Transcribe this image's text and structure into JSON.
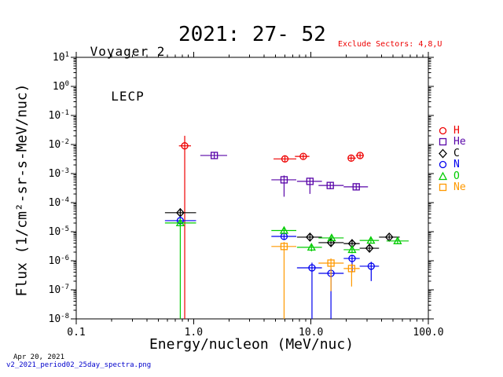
{
  "header": {
    "instrument_line1": "Voyager 2",
    "instrument_line2": "LECP",
    "period_title": "2021: 27- 52",
    "exclude_note": "Exclude Sectors: 4,8,U",
    "exclude_color": "#ee0000"
  },
  "footer": {
    "date": "Apr 20, 2021",
    "filename": "v2_2021_period02_25day_spectra.png",
    "link_color": "#0000cc"
  },
  "chart_data": {
    "type": "scatter",
    "title": "2021: 27- 52",
    "xlabel": "Energy/nucleon (MeV/nuc)",
    "ylabel": "Flux (1/cm²-sr-s-MeV/nuc)",
    "xscale": "log",
    "yscale": "log",
    "xlim": [
      0.1,
      100.0
    ],
    "ylim": [
      1e-08,
      10
    ],
    "x_tick_values": [
      0.1,
      1.0,
      10.0,
      100.0
    ],
    "x_tick_labels": [
      "0.1",
      "1.0",
      "10.0",
      "100.0"
    ],
    "y_tick_exponents": [
      1,
      0,
      -1,
      -2,
      -3,
      -4,
      -5,
      -6,
      -7,
      -8
    ],
    "grid": false,
    "legend_position": "right-outside",
    "point_format": [
      "x",
      "y",
      "x_low",
      "x_high",
      "y_low",
      "y_high"
    ],
    "note_error_bars": "y_low of 1e-9 means lower error bar extends down to the x-axis",
    "series": [
      {
        "name": "H",
        "color": "#ee0000",
        "marker": "circle",
        "points": [
          [
            0.84,
            0.009,
            0.75,
            0.95,
            1e-09,
            0.02
          ],
          [
            6.0,
            0.0032,
            4.8,
            7.5,
            0.0026,
            0.004
          ],
          [
            8.6,
            0.0039,
            7.3,
            9.7,
            0.0032,
            0.0047
          ],
          [
            22.0,
            0.0034,
            20.9,
            24.1,
            0.0028,
            0.0041
          ],
          [
            26.2,
            0.0042,
            24.1,
            28.2,
            0.0035,
            0.005
          ]
        ]
      },
      {
        "name": "He",
        "color": "#5804a8",
        "marker": "square",
        "points": [
          [
            1.5,
            0.0042,
            1.14,
            1.93,
            0.0032,
            0.0053
          ],
          [
            5.9,
            0.00061,
            4.6,
            7.5,
            0.00016,
            0.00086
          ],
          [
            9.8,
            0.00054,
            7.6,
            12.4,
            0.0002,
            0.00072
          ],
          [
            14.6,
            0.00039,
            11.6,
            19.0,
            0.00029,
            0.0005
          ],
          [
            24.3,
            0.00035,
            19.0,
            30.6,
            0.00028,
            0.00044
          ]
        ]
      },
      {
        "name": "C",
        "color": "#000000",
        "marker": "diamond",
        "points": [
          [
            0.77,
            4.5e-05,
            0.57,
            1.05,
            3.1e-05,
            6.4e-05
          ],
          [
            9.8,
            6.5e-06,
            7.6,
            12.4,
            5e-06,
            8.4e-06
          ],
          [
            14.8,
            4.2e-06,
            11.6,
            19.0,
            3.2e-06,
            5.5e-06
          ],
          [
            22.4,
            3.9e-06,
            19.0,
            26.0,
            3e-06,
            5e-06
          ],
          [
            31.5,
            2.7e-06,
            26.0,
            38.0,
            2e-06,
            3.6e-06
          ],
          [
            46.4,
            6.5e-06,
            38.0,
            57.0,
            5.3e-06,
            7.9e-06
          ]
        ]
      },
      {
        "name": "N",
        "color": "#0000ee",
        "marker": "circle",
        "points": [
          [
            0.77,
            2.4e-05,
            0.57,
            1.05,
            1.7e-05,
            3.4e-05
          ],
          [
            5.9,
            6.9e-06,
            4.6,
            7.5,
            5.2e-06,
            9e-06
          ],
          [
            10.2,
            5.7e-07,
            7.6,
            12.4,
            1e-09,
            8.6e-07
          ],
          [
            14.8,
            3.7e-07,
            11.6,
            19.0,
            1e-09,
            5.6e-07
          ],
          [
            22.4,
            1.2e-06,
            19.0,
            26.0,
            4e-07,
            1.6e-06
          ],
          [
            32.6,
            6.5e-07,
            26.0,
            38.0,
            2e-07,
            9.2e-07
          ]
        ]
      },
      {
        "name": "O",
        "color": "#00cc00",
        "marker": "triangle",
        "points": [
          [
            0.77,
            2e-05,
            0.57,
            1.05,
            1e-09,
            2.9e-05
          ],
          [
            5.9,
            1.1e-05,
            4.6,
            7.5,
            8.4e-06,
            1.4e-05
          ],
          [
            10.1,
            2.9e-06,
            7.6,
            12.4,
            2.1e-06,
            3.9e-06
          ],
          [
            15.0,
            6.1e-06,
            11.6,
            19.0,
            4.8e-06,
            7.7e-06
          ],
          [
            22.4,
            2.4e-06,
            19.0,
            26.0,
            1.8e-06,
            3.2e-06
          ],
          [
            32.4,
            5e-06,
            26.0,
            38.0,
            4e-06,
            6.3e-06
          ],
          [
            54.7,
            4.8e-06,
            44.0,
            68.0,
            3.8e-06,
            6e-06
          ]
        ]
      },
      {
        "name": "Ne",
        "color": "#ff9900",
        "marker": "square",
        "points": [
          [
            5.9,
            3.1e-06,
            4.6,
            7.5,
            1e-09,
            4.4e-06
          ],
          [
            14.8,
            8.3e-07,
            11.6,
            19.0,
            9e-08,
            1.2e-06
          ],
          [
            22.2,
            5.4e-07,
            19.0,
            26.0,
            1.3e-07,
            7.8e-07
          ]
        ]
      }
    ]
  }
}
